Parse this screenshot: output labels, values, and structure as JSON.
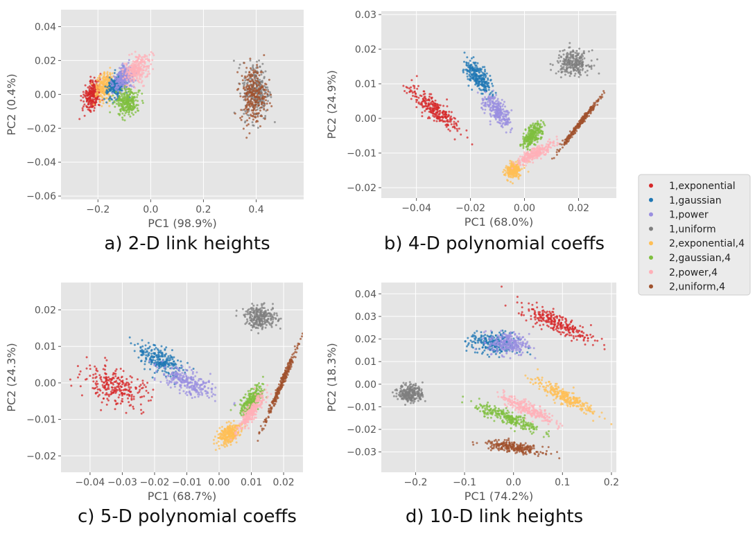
{
  "captions": [
    "a) 2-D link heights",
    "b) 4-D polynomial coeffs",
    "c) 5-D polynomial coeffs",
    "d) 10-D link heights"
  ],
  "legend": {
    "placement": "right, vertically centered between panels",
    "entries": [
      {
        "label": "1,exponential",
        "color": "#d62728"
      },
      {
        "label": "1,gaussian",
        "color": "#1f77b4"
      },
      {
        "label": "1,power",
        "color": "#9a8fe0"
      },
      {
        "label": "1,uniform",
        "color": "#7f7f7f"
      },
      {
        "label": "2,exponential,4",
        "color": "#ffbf55"
      },
      {
        "label": "2,gaussian,4",
        "color": "#7fbf3f"
      },
      {
        "label": "2,power,4",
        "color": "#ffb0b8"
      },
      {
        "label": "2,uniform,4",
        "color": "#a0522d"
      }
    ]
  },
  "chart_data": [
    {
      "type": "scatter",
      "title": "a) 2-D link heights",
      "xlabel": "PC1 (98.9%)",
      "ylabel": "PC2 (0.4%)",
      "xlim": [
        -0.34,
        0.58
      ],
      "ylim": [
        -0.062,
        0.05
      ],
      "xticks": [
        -0.2,
        0.0,
        0.2,
        0.4
      ],
      "xtick_labels": [
        "−0.2",
        "0.0",
        "0.2",
        "0.4"
      ],
      "yticks": [
        -0.06,
        -0.04,
        -0.02,
        0.0,
        0.02,
        0.04
      ],
      "ytick_labels": [
        "−0.06",
        "−0.04",
        "−0.02",
        "0.00",
        "0.02",
        "0.04"
      ],
      "grid": true,
      "clusters": [
        {
          "series": "1,exponential",
          "x": -0.22,
          "y": 0.0,
          "a": 0.06,
          "b": 0.005,
          "angle": 72
        },
        {
          "series": "2,exponential,4",
          "x": -0.17,
          "y": 0.005,
          "a": 0.058,
          "b": 0.005,
          "angle": 68
        },
        {
          "series": "1,gaussian",
          "x": -0.13,
          "y": 0.005,
          "a": 0.05,
          "b": 0.005,
          "angle": 62
        },
        {
          "series": "1,power",
          "x": -0.1,
          "y": 0.01,
          "a": 0.05,
          "b": 0.005,
          "angle": 58
        },
        {
          "series": "2,power,4",
          "x": -0.05,
          "y": 0.015,
          "a": 0.06,
          "b": 0.006,
          "angle": 55
        },
        {
          "series": "2,gaussian,4",
          "x": -0.09,
          "y": -0.005,
          "a": 0.045,
          "b": 0.007,
          "angle": 52
        },
        {
          "series": "1,uniform",
          "x": 0.4,
          "y": 0.002,
          "a": 0.05,
          "b": 0.017,
          "angle": 0
        },
        {
          "series": "2,uniform,4",
          "x": 0.39,
          "y": 0.0,
          "a": 0.05,
          "b": 0.017,
          "angle": 0
        }
      ]
    },
    {
      "type": "scatter",
      "title": "b) 4-D polynomial coeffs",
      "xlabel": "PC1 (68.0%)",
      "ylabel": "PC2 (24.9%)",
      "xlim": [
        -0.053,
        0.034
      ],
      "ylim": [
        -0.023,
        0.031
      ],
      "xticks": [
        -0.04,
        -0.02,
        0.0,
        0.02
      ],
      "xtick_labels": [
        "−0.04",
        "−0.02",
        "0.00",
        "0.02"
      ],
      "yticks": [
        -0.02,
        -0.01,
        0.0,
        0.01,
        0.02,
        0.03
      ],
      "ytick_labels": [
        "−0.02",
        "−0.01",
        "0.00",
        "0.01",
        "0.02",
        "0.03"
      ],
      "grid": true,
      "clusters": [
        {
          "series": "1,exponential",
          "x": -0.034,
          "y": 0.003,
          "a": 0.012,
          "b": 0.0025,
          "angle": -38
        },
        {
          "series": "1,gaussian",
          "x": -0.017,
          "y": 0.012,
          "a": 0.007,
          "b": 0.0025,
          "angle": -52
        },
        {
          "series": "1,power",
          "x": -0.01,
          "y": 0.002,
          "a": 0.007,
          "b": 0.0025,
          "angle": -52
        },
        {
          "series": "1,uniform",
          "x": 0.018,
          "y": 0.016,
          "a": 0.006,
          "b": 0.0035,
          "angle": 0
        },
        {
          "series": "2,exponential,4",
          "x": -0.004,
          "y": -0.015,
          "a": 0.003,
          "b": 0.002,
          "angle": 40
        },
        {
          "series": "2,gaussian,4",
          "x": 0.003,
          "y": -0.005,
          "a": 0.005,
          "b": 0.002,
          "angle": 55
        },
        {
          "series": "2,power,4",
          "x": 0.004,
          "y": -0.01,
          "a": 0.008,
          "b": 0.0015,
          "angle": 30
        },
        {
          "series": "2,uniform,4",
          "x": 0.02,
          "y": -0.002,
          "a": 0.013,
          "b": 0.0006,
          "angle": 52
        }
      ]
    },
    {
      "type": "scatter",
      "title": "c) 5-D polynomial coeffs",
      "xlabel": "PC1 (68.7%)",
      "ylabel": "PC2 (24.3%)",
      "xlim": [
        -0.049,
        0.026
      ],
      "ylim": [
        -0.0245,
        0.0275
      ],
      "xticks": [
        -0.04,
        -0.03,
        -0.02,
        -0.01,
        0.0,
        0.01,
        0.02
      ],
      "xtick_labels": [
        "−0.04",
        "−0.03",
        "−0.02",
        "−0.01",
        "0.00",
        "0.01",
        "0.02"
      ],
      "yticks": [
        -0.02,
        -0.01,
        0.0,
        0.01,
        0.02
      ],
      "ytick_labels": [
        "−0.02",
        "−0.01",
        "0.00",
        "0.01",
        "0.02"
      ],
      "grid": true,
      "clusters": [
        {
          "series": "1,exponential",
          "x": -0.032,
          "y": -0.001,
          "a": 0.011,
          "b": 0.0045,
          "angle": -20
        },
        {
          "series": "1,gaussian",
          "x": -0.018,
          "y": 0.006,
          "a": 0.008,
          "b": 0.003,
          "angle": -30
        },
        {
          "series": "1,power",
          "x": -0.01,
          "y": 0.0,
          "a": 0.009,
          "b": 0.003,
          "angle": -25
        },
        {
          "series": "1,uniform",
          "x": 0.013,
          "y": 0.018,
          "a": 0.005,
          "b": 0.003,
          "angle": 0
        },
        {
          "series": "2,exponential,4",
          "x": 0.003,
          "y": -0.014,
          "a": 0.004,
          "b": 0.0022,
          "angle": 40
        },
        {
          "series": "2,gaussian,4",
          "x": 0.01,
          "y": -0.005,
          "a": 0.005,
          "b": 0.002,
          "angle": 55
        },
        {
          "series": "2,power,4",
          "x": 0.01,
          "y": -0.008,
          "a": 0.007,
          "b": 0.0014,
          "angle": 55
        },
        {
          "series": "2,uniform,4",
          "x": 0.019,
          "y": -0.001,
          "a": 0.013,
          "b": 0.0006,
          "angle": 67
        }
      ]
    },
    {
      "type": "scatter",
      "title": "d) 10-D link heights",
      "xlabel": "PC1 (74.2%)",
      "ylabel": "PC2 (18.3%)",
      "xlim": [
        -0.27,
        0.21
      ],
      "ylim": [
        -0.039,
        0.045
      ],
      "xticks": [
        -0.2,
        -0.1,
        0.0,
        0.1,
        0.2
      ],
      "xtick_labels": [
        "−0.2",
        "−0.1",
        "0.0",
        "0.1",
        "0.2"
      ],
      "yticks": [
        -0.03,
        -0.02,
        -0.01,
        0.0,
        0.01,
        0.02,
        0.03,
        0.04
      ],
      "ytick_labels": [
        "−0.03",
        "−0.02",
        "−0.01",
        "0.00",
        "0.01",
        "0.02",
        "0.03",
        "0.04"
      ],
      "grid": true,
      "clusters": [
        {
          "series": "1,uniform",
          "x": -0.21,
          "y": -0.004,
          "a": 0.025,
          "b": 0.004,
          "angle": 0
        },
        {
          "series": "1,gaussian",
          "x": -0.04,
          "y": 0.018,
          "a": 0.05,
          "b": 0.005,
          "angle": -5
        },
        {
          "series": "1,power",
          "x": -0.01,
          "y": 0.018,
          "a": 0.04,
          "b": 0.005,
          "angle": -5
        },
        {
          "series": "1,exponential",
          "x": 0.09,
          "y": 0.027,
          "a": 0.08,
          "b": 0.004,
          "angle": -25
        },
        {
          "series": "2,exponential,4",
          "x": 0.1,
          "y": -0.005,
          "a": 0.07,
          "b": 0.003,
          "angle": -27
        },
        {
          "series": "2,power,4",
          "x": 0.03,
          "y": -0.011,
          "a": 0.06,
          "b": 0.0028,
          "angle": -25
        },
        {
          "series": "2,gaussian,4",
          "x": -0.01,
          "y": -0.015,
          "a": 0.07,
          "b": 0.0028,
          "angle": -22
        },
        {
          "series": "2,uniform,4",
          "x": 0.0,
          "y": -0.028,
          "a": 0.06,
          "b": 0.0022,
          "angle": -8
        }
      ]
    }
  ]
}
